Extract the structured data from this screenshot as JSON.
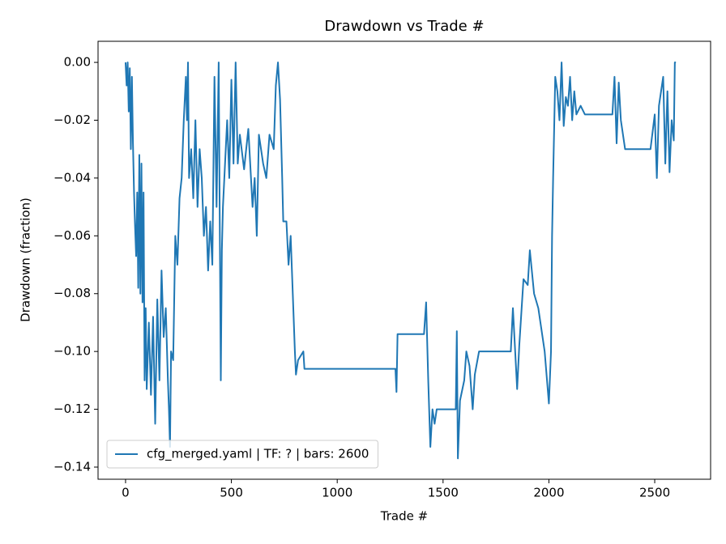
{
  "chart_data": {
    "type": "line",
    "title": "Drawdown vs Trade #",
    "xlabel": "Trade #",
    "ylabel": "Drawdown (fraction)",
    "xlim": [
      -130,
      2764
    ],
    "ylim": [
      -0.1442,
      0.0073
    ],
    "xticks": [
      0,
      500,
      1000,
      1500,
      2000,
      2500
    ],
    "yticks": [
      {
        "value": 0,
        "label": "0.00"
      },
      {
        "value": -0.02,
        "label": "−0.02"
      },
      {
        "value": -0.04,
        "label": "−0.04"
      },
      {
        "value": -0.06,
        "label": "−0.06"
      },
      {
        "value": -0.08,
        "label": "−0.08"
      },
      {
        "value": -0.1,
        "label": "−0.10"
      },
      {
        "value": -0.12,
        "label": "−0.12"
      },
      {
        "value": -0.14,
        "label": "−0.14"
      }
    ],
    "legend": "lower left",
    "x": [
      0,
      5,
      10,
      15,
      20,
      25,
      30,
      35,
      40,
      45,
      50,
      55,
      60,
      65,
      70,
      75,
      80,
      85,
      90,
      95,
      100,
      110,
      120,
      130,
      140,
      150,
      160,
      170,
      180,
      190,
      200,
      205,
      210,
      215,
      225,
      235,
      245,
      255,
      265,
      275,
      285,
      290,
      295,
      300,
      310,
      320,
      330,
      340,
      350,
      360,
      370,
      380,
      390,
      400,
      410,
      420,
      430,
      440,
      450,
      455,
      460,
      470,
      480,
      490,
      500,
      510,
      520,
      530,
      540,
      560,
      580,
      600,
      610,
      620,
      630,
      650,
      665,
      680,
      700,
      710,
      720,
      730,
      740,
      745,
      760,
      770,
      780,
      790,
      800,
      805,
      815,
      840,
      845,
      1275,
      1280,
      1285,
      1410,
      1420,
      1430,
      1440,
      1450,
      1460,
      1470,
      1560,
      1565,
      1570,
      1580,
      1600,
      1610,
      1625,
      1640,
      1650,
      1670,
      1700,
      1720,
      1820,
      1830,
      1850,
      1860,
      1880,
      1900,
      1910,
      1930,
      1950,
      1980,
      2000,
      2010,
      2015,
      2020,
      2030,
      2040,
      2050,
      2060,
      2070,
      2080,
      2090,
      2100,
      2110,
      2120,
      2130,
      2150,
      2170,
      2300,
      2310,
      2320,
      2330,
      2340,
      2360,
      2480,
      2500,
      2510,
      2520,
      2540,
      2550,
      2560,
      2570,
      2580,
      2590,
      2595,
      2600
    ],
    "series": [
      {
        "name": "cfg_merged.yaml | TF: ? | bars: 2600",
        "color": "#1f77b4",
        "values": [
          0,
          -0.008,
          0,
          -0.017,
          -0.002,
          -0.03,
          -0.005,
          -0.028,
          -0.045,
          -0.057,
          -0.067,
          -0.045,
          -0.078,
          -0.032,
          -0.08,
          -0.035,
          -0.083,
          -0.045,
          -0.11,
          -0.085,
          -0.113,
          -0.09,
          -0.115,
          -0.088,
          -0.125,
          -0.082,
          -0.11,
          -0.072,
          -0.095,
          -0.085,
          -0.11,
          -0.12,
          -0.133,
          -0.1,
          -0.103,
          -0.06,
          -0.07,
          -0.047,
          -0.04,
          -0.02,
          -0.005,
          -0.02,
          0,
          -0.04,
          -0.03,
          -0.047,
          -0.02,
          -0.05,
          -0.03,
          -0.04,
          -0.06,
          -0.05,
          -0.072,
          -0.055,
          -0.07,
          -0.005,
          -0.05,
          0,
          -0.11,
          -0.065,
          -0.05,
          -0.035,
          -0.02,
          -0.04,
          -0.006,
          -0.035,
          0,
          -0.035,
          -0.025,
          -0.037,
          -0.023,
          -0.05,
          -0.04,
          -0.06,
          -0.025,
          -0.035,
          -0.04,
          -0.025,
          -0.03,
          -0.008,
          0,
          -0.013,
          -0.04,
          -0.055,
          -0.055,
          -0.07,
          -0.06,
          -0.08,
          -0.1,
          -0.108,
          -0.103,
          -0.1,
          -0.106,
          -0.106,
          -0.114,
          -0.094,
          -0.094,
          -0.083,
          -0.11,
          -0.133,
          -0.12,
          -0.125,
          -0.12,
          -0.12,
          -0.093,
          -0.137,
          -0.117,
          -0.11,
          -0.1,
          -0.105,
          -0.12,
          -0.108,
          -0.1,
          -0.1,
          -0.1,
          -0.1,
          -0.085,
          -0.113,
          -0.098,
          -0.075,
          -0.077,
          -0.065,
          -0.08,
          -0.085,
          -0.1,
          -0.118,
          -0.1,
          -0.06,
          -0.04,
          -0.005,
          -0.01,
          -0.02,
          0,
          -0.022,
          -0.012,
          -0.015,
          -0.005,
          -0.02,
          -0.01,
          -0.018,
          -0.015,
          -0.018,
          -0.018,
          -0.005,
          -0.028,
          -0.007,
          -0.02,
          -0.03,
          -0.03,
          -0.018,
          -0.04,
          -0.015,
          -0.005,
          -0.035,
          -0.01,
          -0.038,
          -0.02,
          -0.027,
          0,
          0
        ]
      }
    ]
  }
}
